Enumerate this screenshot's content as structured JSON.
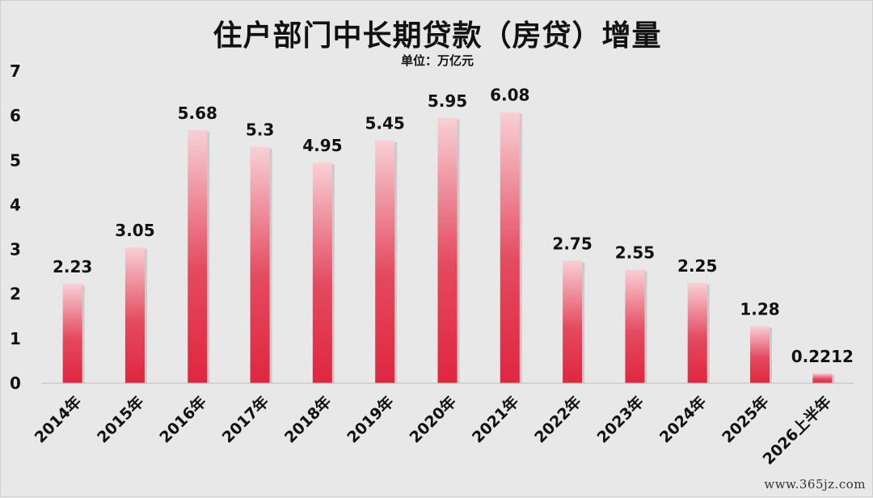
{
  "chart_data": {
    "type": "bar",
    "title": "住户部门中长期贷款（房贷）增量",
    "subtitle": "单位：万亿元",
    "categories": [
      "2014年",
      "2015年",
      "2016年",
      "2017年",
      "2018年",
      "2019年",
      "2020年",
      "2021年",
      "2022年",
      "2023年",
      "2024年",
      "2025年",
      "2026上半年"
    ],
    "values": [
      2.23,
      3.05,
      5.68,
      5.3,
      4.95,
      5.45,
      5.95,
      6.08,
      2.75,
      2.55,
      2.25,
      1.28,
      0.2212
    ],
    "value_labels": [
      "2.23",
      "3.05",
      "5.68",
      "5.3",
      "4.95",
      "5.45",
      "5.95",
      "6.08",
      "2.75",
      "2.55",
      "2.25",
      "1.28",
      "0.2212"
    ],
    "yticks": [
      "0",
      "1",
      "2",
      "3",
      "4",
      "5",
      "6",
      "7"
    ],
    "ylim": [
      0,
      7
    ],
    "grid": false,
    "legend": "none",
    "colors": {
      "bar_bottom": "#e0263f",
      "bar_top": "#f9d0d6",
      "background": "#e8e8e8"
    }
  },
  "watermark": "www.365jz.com"
}
